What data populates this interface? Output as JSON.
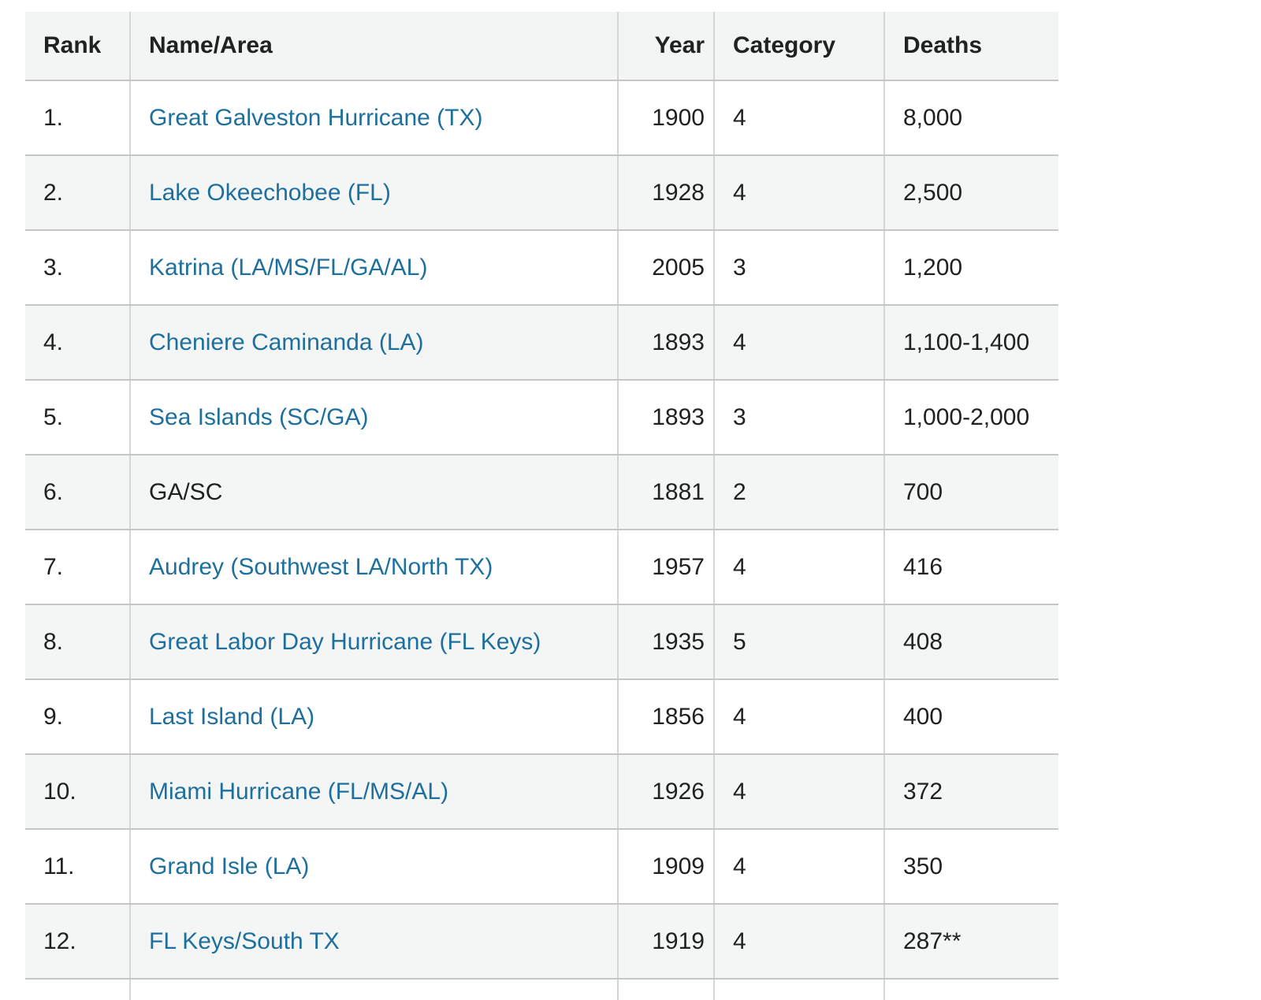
{
  "table": {
    "headers": {
      "rank": "Rank",
      "name": "Name/Area",
      "year": "Year",
      "category": "Category",
      "deaths": "Deaths"
    },
    "rows": [
      {
        "rank": "1.",
        "name": "Great Galveston Hurricane (TX)",
        "year": "1900",
        "category": "4",
        "deaths": "8,000"
      },
      {
        "rank": "2.",
        "name": "Lake Okeechobee (FL)",
        "year": "1928",
        "category": "4",
        "deaths": "2,500"
      },
      {
        "rank": "3.",
        "name": "Katrina (LA/MS/FL/GA/AL)",
        "year": "2005",
        "category": "3",
        "deaths": "1,200"
      },
      {
        "rank": "4.",
        "name": "Cheniere Caminanda (LA)",
        "year": "1893",
        "category": "4",
        "deaths": "1,100-1,400"
      },
      {
        "rank": "5.",
        "name": "Sea Islands (SC/GA)",
        "year": "1893",
        "category": "3",
        "deaths": "1,000-2,000"
      },
      {
        "rank": "6.",
        "name": "GA/SC",
        "year": "1881",
        "category": "2",
        "deaths": "700"
      },
      {
        "rank": "7.",
        "name": "Audrey (Southwest LA/North TX)",
        "year": "1957",
        "category": "4",
        "deaths": "416"
      },
      {
        "rank": "8.",
        "name": "Great Labor Day Hurricane (FL Keys)",
        "year": "1935",
        "category": "5",
        "deaths": "408"
      },
      {
        "rank": "9.",
        "name": "Last Island (LA)",
        "year": "1856",
        "category": "4",
        "deaths": "400"
      },
      {
        "rank": "10.",
        "name": "Miami Hurricane (FL/MS/AL)",
        "year": "1926",
        "category": "4",
        "deaths": "372"
      },
      {
        "rank": "11.",
        "name": "Grand Isle (LA)",
        "year": "1909",
        "category": "4",
        "deaths": "350"
      },
      {
        "rank": "12.",
        "name": "FL Keys/South TX",
        "year": "1919",
        "category": "4",
        "deaths": "287**"
      }
    ]
  },
  "colors": {
    "link": "#1d6f9e",
    "header_bg": "#f3f4f4",
    "alt_row_bg": "#f4f5f5",
    "border": "#c6c6c6",
    "text": "#202122"
  }
}
